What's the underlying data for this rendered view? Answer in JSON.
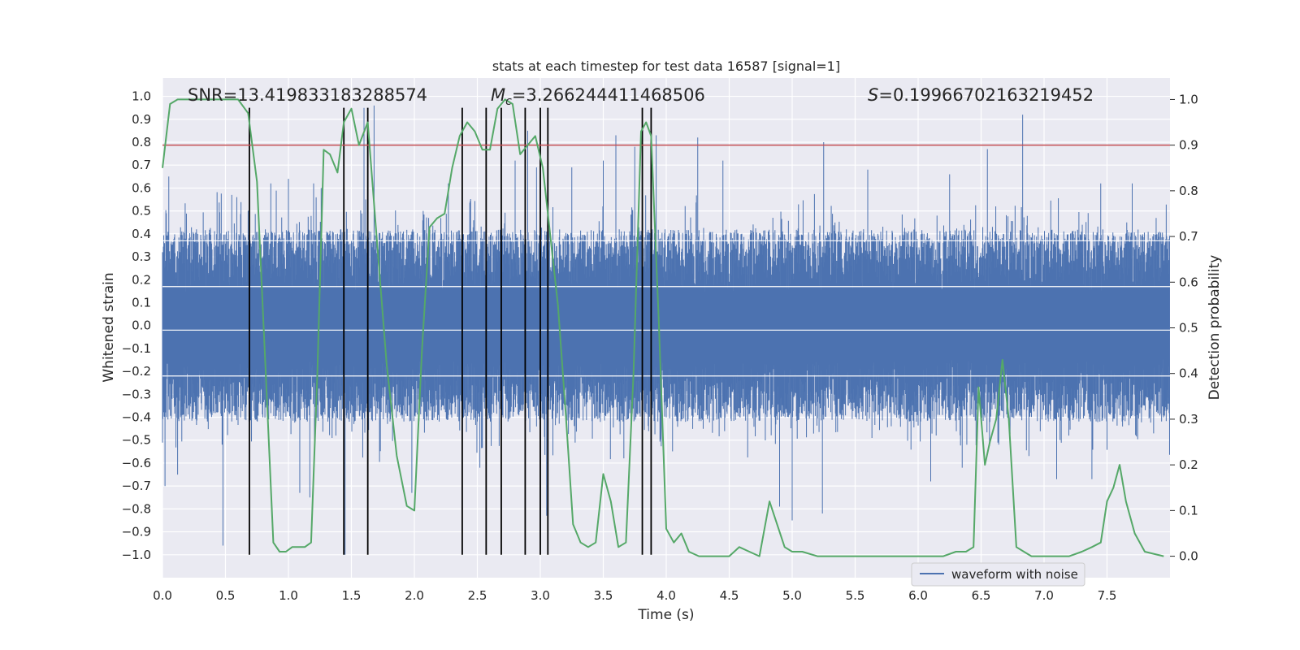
{
  "chart_data": {
    "type": "line",
    "title": "stats at each timestep for test data 16587 [signal=1]",
    "xlabel": "Time (s)",
    "ylabel": "Whitened strain",
    "y2label": "Detection probability",
    "xlim": [
      0.0,
      8.0
    ],
    "ylim": [
      -1.1,
      1.08
    ],
    "y2lim": [
      -0.047,
      1.047
    ],
    "xticks": [
      "0.0",
      "0.5",
      "1.0",
      "1.5",
      "2.0",
      "2.5",
      "3.0",
      "3.5",
      "4.0",
      "4.5",
      "5.0",
      "5.5",
      "6.0",
      "6.5",
      "7.0",
      "7.5"
    ],
    "yticks": [
      "1.0",
      "0.9",
      "0.8",
      "0.7",
      "0.6",
      "0.5",
      "0.4",
      "0.3",
      "0.2",
      "0.1",
      "0.0",
      "−0.1",
      "−0.2",
      "−0.3",
      "−0.4",
      "−0.5",
      "−0.6",
      "−0.7",
      "−0.8",
      "−0.9",
      "−1.0"
    ],
    "y2ticks": [
      "1.0",
      "0.9",
      "0.8",
      "0.7",
      "0.6",
      "0.5",
      "0.4",
      "0.3",
      "0.2",
      "0.1",
      "0.0"
    ],
    "annotations": {
      "snr": "SNR=13.419833183288574",
      "mc_symbol": "M",
      "mc_sub": "c",
      "mc_value": "=3.266244411468506",
      "s_symbol": "S",
      "s_value": "=0.19966702163219452"
    },
    "legend": {
      "label": "waveform with noise",
      "position": "lower-center"
    },
    "threshold": {
      "value": 0.9,
      "axis": "y2",
      "color": "#c44e52"
    },
    "vertical_markers": {
      "x": [
        0.69,
        1.44,
        1.63,
        2.38,
        2.57,
        2.69,
        2.88,
        3.0,
        3.06,
        3.81,
        3.88
      ],
      "y_range": [
        -1.0,
        0.95
      ]
    },
    "strain_series": {
      "name": "waveform with noise",
      "color": "#4c72b0",
      "typical_amplitude": 0.42,
      "peaks": [
        [
          0.02,
          -0.7
        ],
        [
          0.05,
          0.65
        ],
        [
          0.12,
          -0.65
        ],
        [
          0.48,
          -0.96
        ],
        [
          0.55,
          0.57
        ],
        [
          0.86,
          0.62
        ],
        [
          1.0,
          0.64
        ],
        [
          1.09,
          -0.73
        ],
        [
          1.17,
          -0.75
        ],
        [
          1.2,
          0.62
        ],
        [
          1.26,
          0.6
        ],
        [
          1.45,
          -1.0
        ],
        [
          1.6,
          0.95
        ],
        [
          1.68,
          0.96
        ],
        [
          1.98,
          -0.73
        ],
        [
          2.27,
          0.62
        ],
        [
          2.52,
          -0.62
        ],
        [
          2.8,
          0.72
        ],
        [
          2.9,
          0.85
        ],
        [
          2.97,
          0.69
        ],
        [
          3.05,
          -0.83
        ],
        [
          3.25,
          0.69
        ],
        [
          3.5,
          0.72
        ],
        [
          3.6,
          0.83
        ],
        [
          3.75,
          0.78
        ],
        [
          3.92,
          0.83
        ],
        [
          4.25,
          0.82
        ],
        [
          4.45,
          0.72
        ],
        [
          4.9,
          -0.79
        ],
        [
          5.0,
          -0.85
        ],
        [
          5.25,
          0.8
        ],
        [
          5.24,
          -0.82
        ],
        [
          5.6,
          0.68
        ],
        [
          6.1,
          -0.68
        ],
        [
          6.25,
          0.66
        ],
        [
          6.35,
          -0.62
        ],
        [
          6.55,
          0.77
        ],
        [
          6.68,
          -0.17
        ],
        [
          6.83,
          0.92
        ],
        [
          7.1,
          -0.67
        ],
        [
          7.38,
          -0.67
        ],
        [
          7.45,
          0.62
        ],
        [
          7.7,
          0.62
        ]
      ]
    },
    "probability_series": {
      "name": "detection probability",
      "color": "#55a868",
      "x": [
        0.0,
        0.06,
        0.12,
        0.2,
        0.3,
        0.4,
        0.5,
        0.6,
        0.68,
        0.75,
        0.82,
        0.88,
        0.93,
        0.98,
        1.03,
        1.08,
        1.13,
        1.18,
        1.23,
        1.28,
        1.33,
        1.39,
        1.44,
        1.5,
        1.56,
        1.63,
        1.7,
        1.78,
        1.86,
        1.94,
        2.0,
        2.06,
        2.12,
        2.18,
        2.24,
        2.3,
        2.36,
        2.42,
        2.48,
        2.54,
        2.6,
        2.66,
        2.72,
        2.78,
        2.84,
        2.9,
        2.96,
        3.02,
        3.08,
        3.14,
        3.2,
        3.26,
        3.32,
        3.38,
        3.44,
        3.5,
        3.56,
        3.62,
        3.68,
        3.74,
        3.8,
        3.84,
        3.88,
        3.94,
        4.0,
        4.06,
        4.12,
        4.18,
        4.26,
        4.34,
        4.42,
        4.5,
        4.58,
        4.66,
        4.74,
        4.82,
        4.88,
        4.94,
        5.0,
        5.08,
        5.2,
        5.4,
        5.6,
        5.8,
        6.0,
        6.2,
        6.3,
        6.38,
        6.44,
        6.48,
        6.53,
        6.57,
        6.62,
        6.67,
        6.72,
        6.78,
        6.84,
        6.9,
        7.0,
        7.1,
        7.2,
        7.3,
        7.38,
        7.45,
        7.5,
        7.55,
        7.6,
        7.65,
        7.72,
        7.8,
        7.95
      ],
      "y": [
        0.85,
        0.99,
        1.0,
        1.0,
        1.0,
        1.0,
        1.0,
        1.0,
        0.97,
        0.82,
        0.4,
        0.03,
        0.01,
        0.01,
        0.02,
        0.02,
        0.02,
        0.03,
        0.4,
        0.89,
        0.88,
        0.84,
        0.95,
        0.98,
        0.9,
        0.95,
        0.7,
        0.42,
        0.22,
        0.11,
        0.1,
        0.45,
        0.72,
        0.74,
        0.75,
        0.85,
        0.92,
        0.95,
        0.93,
        0.89,
        0.89,
        0.98,
        1.0,
        0.99,
        0.88,
        0.9,
        0.92,
        0.85,
        0.7,
        0.55,
        0.32,
        0.07,
        0.03,
        0.02,
        0.03,
        0.18,
        0.12,
        0.02,
        0.03,
        0.4,
        0.93,
        0.95,
        0.92,
        0.52,
        0.06,
        0.03,
        0.05,
        0.01,
        0.0,
        0.0,
        0.0,
        0.0,
        0.02,
        0.01,
        0.0,
        0.12,
        0.07,
        0.02,
        0.01,
        0.01,
        0.0,
        0.0,
        0.0,
        0.0,
        0.0,
        0.0,
        0.01,
        0.01,
        0.02,
        0.37,
        0.2,
        0.25,
        0.3,
        0.43,
        0.3,
        0.02,
        0.01,
        0.0,
        0.0,
        0.0,
        0.0,
        0.01,
        0.02,
        0.03,
        0.12,
        0.15,
        0.2,
        0.12,
        0.05,
        0.01,
        0.0
      ]
    }
  }
}
